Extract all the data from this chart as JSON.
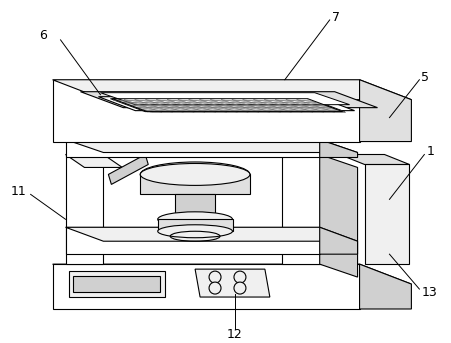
{
  "bg_color": "#ffffff",
  "lc": "#000000",
  "lw": 0.8,
  "fill_white": "#ffffff",
  "fill_light": "#f0f0f0",
  "fill_mid": "#e0e0e0",
  "fill_gray": "#d0d0d0",
  "fill_dark": "#c0c0c0",
  "fill_darker": "#a8a8a8",
  "fill_mesh_bg": "#dcdcdc"
}
